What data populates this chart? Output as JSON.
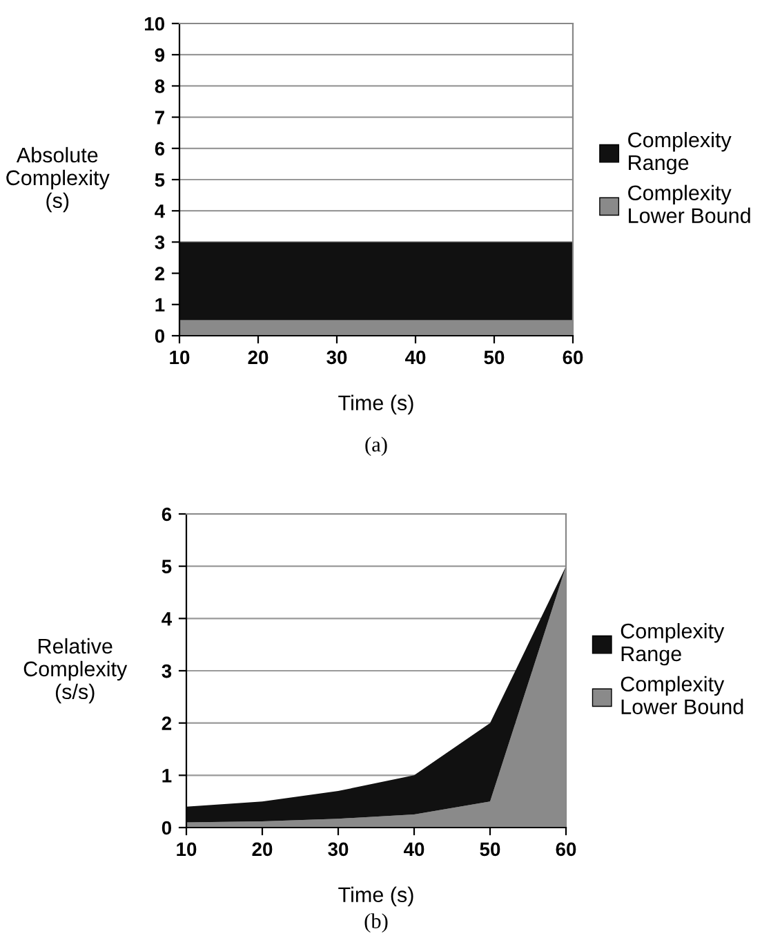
{
  "chart_data": [
    {
      "type": "area",
      "stacked": true,
      "ylabel": "Absolute\nComplexity\n(s)",
      "xlabel": "Time (s)",
      "annotations": [
        "(a)"
      ],
      "x": [
        10,
        20,
        30,
        40,
        50,
        60
      ],
      "xlim": [
        10,
        60
      ],
      "xticks": [
        10,
        20,
        30,
        40,
        50,
        60
      ],
      "ylim": [
        0,
        10
      ],
      "yticks": [
        0,
        1,
        2,
        3,
        4,
        5,
        6,
        7,
        8,
        9,
        10
      ],
      "grid": "y",
      "legend": "right",
      "series": [
        {
          "name": "Complexity Lower Bound",
          "color": "#8a8a8a",
          "values": [
            0.5,
            0.5,
            0.5,
            0.5,
            0.5,
            0.5
          ]
        },
        {
          "name": "Complexity Range",
          "color": "#111111",
          "values": [
            2.5,
            2.5,
            2.5,
            2.5,
            2.5,
            2.5
          ]
        }
      ]
    },
    {
      "type": "area",
      "stacked": true,
      "ylabel": "Relative\nComplexity\n(s/s)",
      "xlabel": "Time (s)",
      "annotations": [
        "(b)"
      ],
      "x": [
        10,
        20,
        30,
        40,
        50,
        60
      ],
      "xlim": [
        10,
        60
      ],
      "xticks": [
        10,
        20,
        30,
        40,
        50,
        60
      ],
      "ylim": [
        0,
        6
      ],
      "yticks": [
        0,
        1,
        2,
        3,
        4,
        5,
        6
      ],
      "grid": "y",
      "legend": "right",
      "series": [
        {
          "name": "Complexity Lower Bound",
          "color": "#8a8a8a",
          "values": [
            0.1,
            0.12,
            0.17,
            0.25,
            0.5,
            5
          ]
        },
        {
          "name": "Complexity Range",
          "color": "#111111",
          "values": [
            0.3,
            0.38,
            0.53,
            0.75,
            1.5,
            0
          ]
        }
      ]
    }
  ]
}
